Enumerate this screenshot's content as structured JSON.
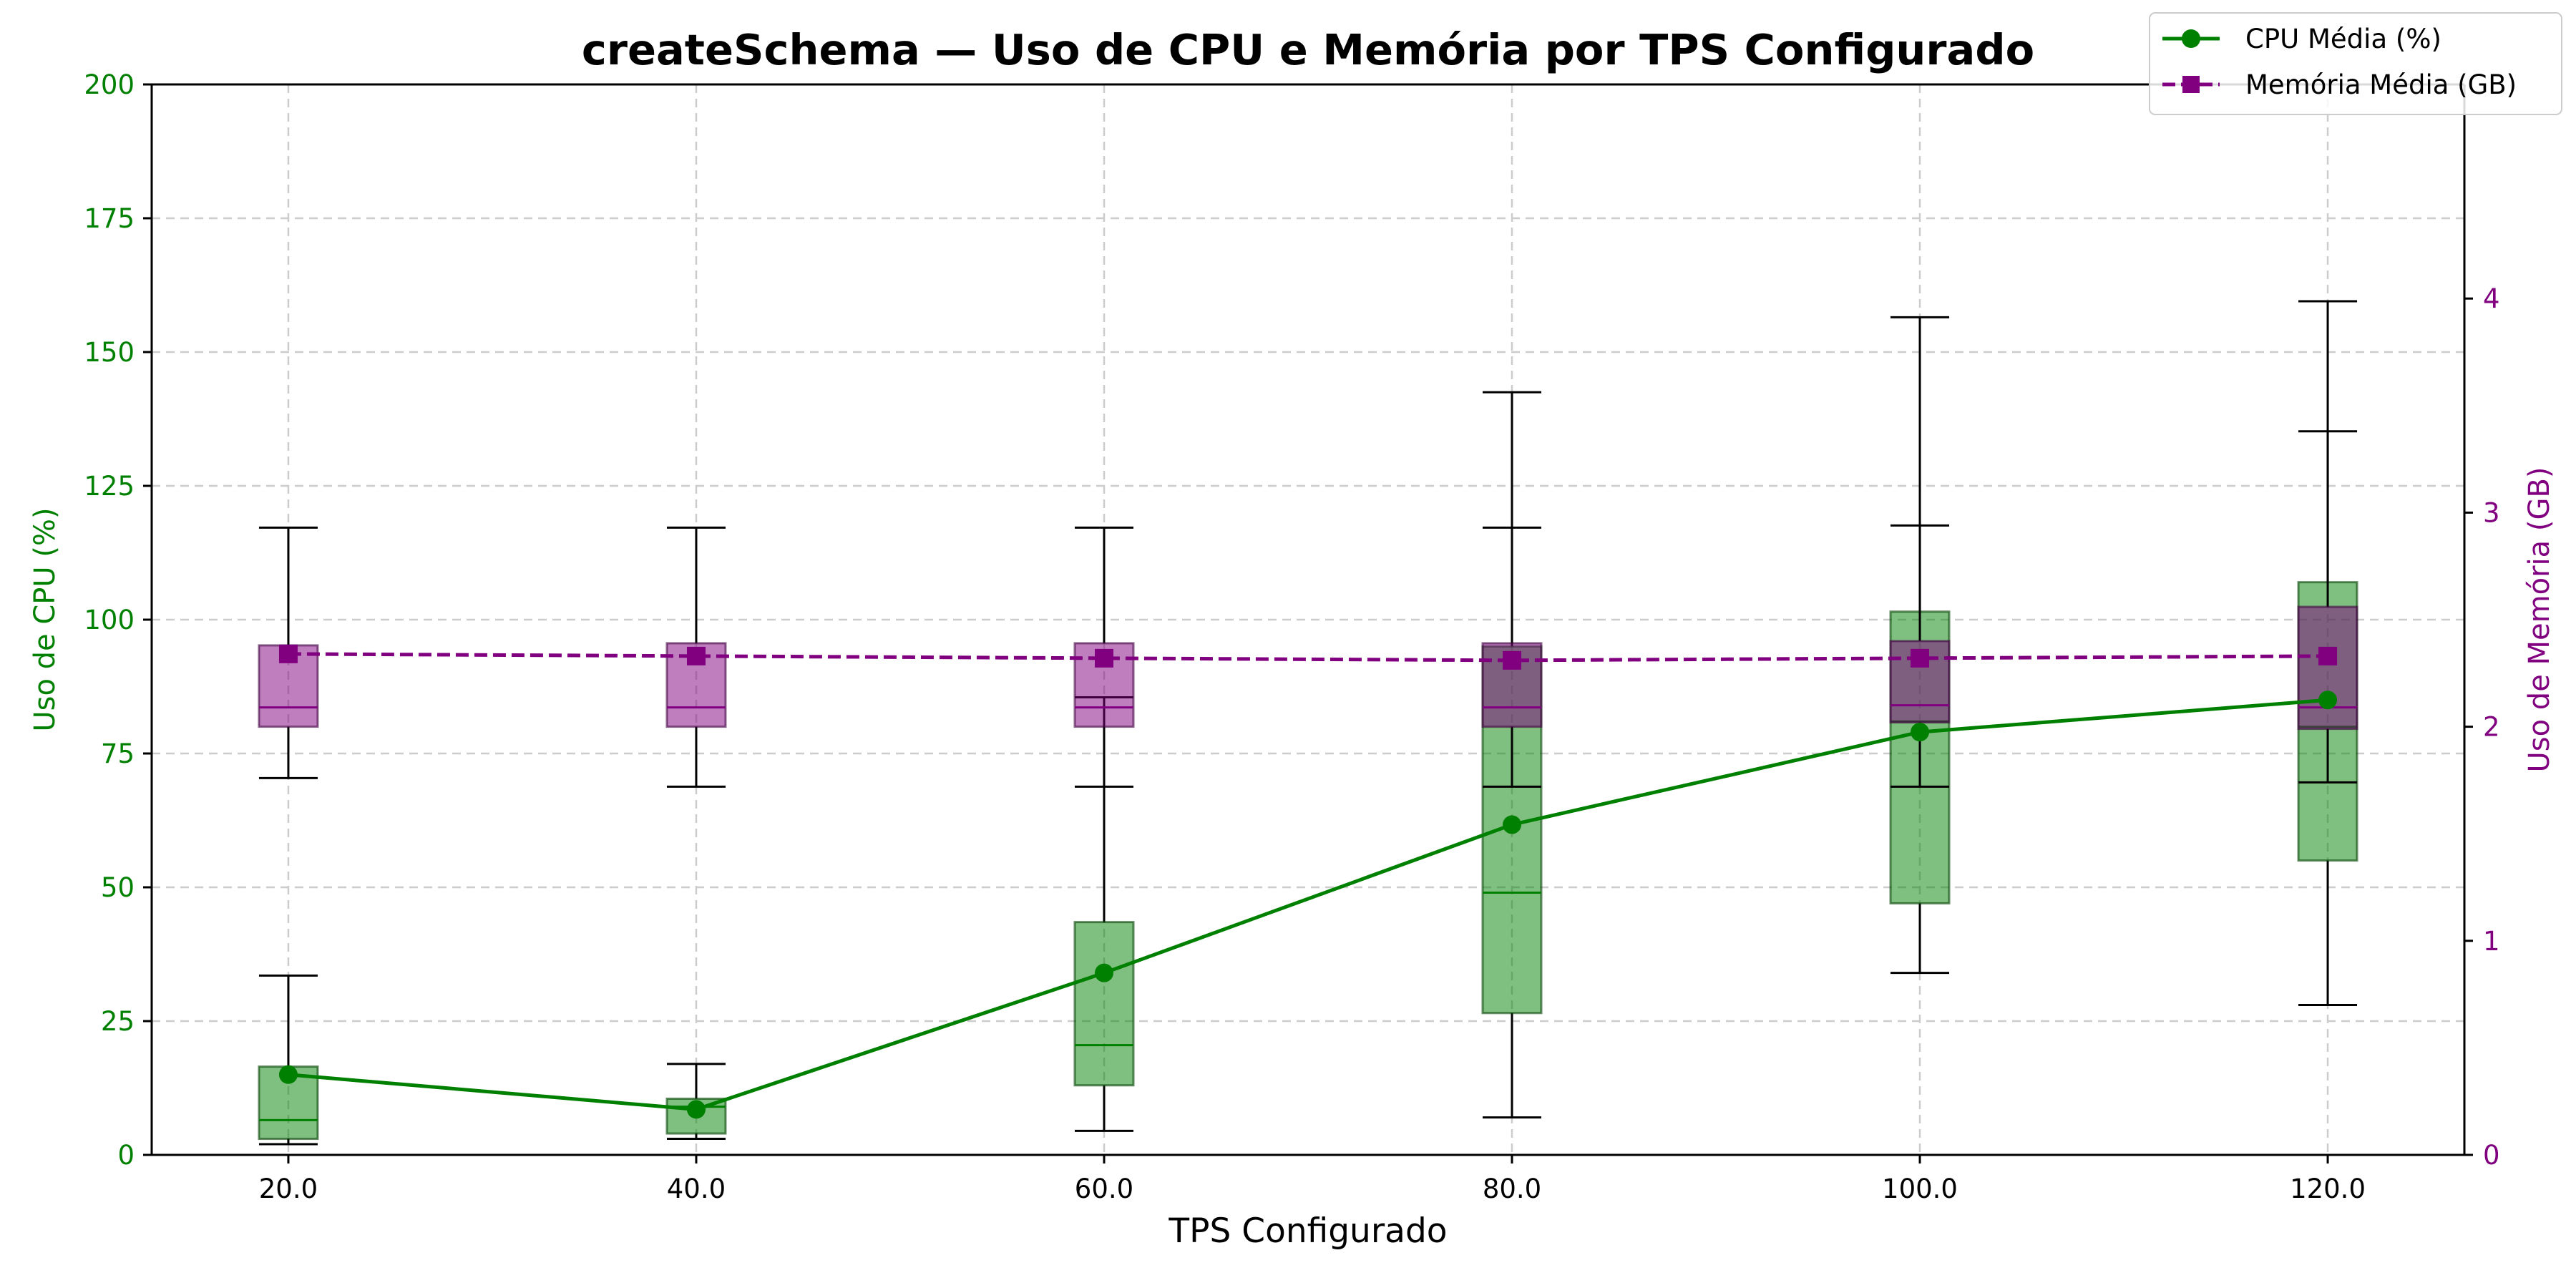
{
  "chart_data": {
    "type": "line",
    "title": "createSchema — Uso de CPU e Memória por TPS Configurado",
    "xlabel": "TPS Configurado",
    "ylabel_left": "Uso de CPU (%)",
    "ylabel_right": "Uso de Memória (GB)",
    "x": [
      20.0,
      40.0,
      60.0,
      80.0,
      100.0,
      120.0
    ],
    "x_tick_labels": [
      "20.0",
      "40.0",
      "60.0",
      "80.0",
      "100.0",
      "120.0"
    ],
    "x_range": [
      13.3,
      126.7
    ],
    "ylim_left": [
      0,
      200
    ],
    "y_ticks_left": [
      "0",
      "25",
      "50",
      "75",
      "100",
      "125",
      "150",
      "175",
      "200"
    ],
    "ylim_right": [
      0,
      5
    ],
    "y_ticks_right": [
      "0",
      "1",
      "2",
      "3",
      "4"
    ],
    "grid": true,
    "legend_position": "top-right",
    "colors": {
      "cpu": "#008000",
      "memory": "#800080",
      "cpu_box": "#7fbf7f",
      "memory_box": "#c990c9"
    },
    "series": [
      {
        "name": "CPU Média (%)",
        "axis": "left",
        "style": "solid",
        "marker": "circle",
        "values": [
          15.0,
          8.5,
          34.0,
          61.7,
          79.0,
          85.0
        ]
      },
      {
        "name": "Memória Média (GB)",
        "axis": "right",
        "style": "dashed",
        "marker": "square",
        "values": [
          2.34,
          2.33,
          2.32,
          2.31,
          2.32,
          2.33
        ]
      }
    ],
    "boxes_cpu": [
      {
        "x": 20.0,
        "whisker_low": 2.0,
        "q1": 3.0,
        "median": 6.5,
        "q3": 16.5,
        "whisker_high": 33.5
      },
      {
        "x": 40.0,
        "whisker_low": 3.0,
        "q1": 4.0,
        "median": 9.0,
        "q3": 10.5,
        "whisker_high": 17.0
      },
      {
        "x": 60.0,
        "whisker_low": 4.5,
        "q1": 13.0,
        "median": 20.5,
        "q3": 43.5,
        "whisker_high": 85.5
      },
      {
        "x": 80.0,
        "whisker_low": 7.0,
        "q1": 26.5,
        "median": 49.0,
        "q3": 95.0,
        "whisker_high": 142.5
      },
      {
        "x": 100.0,
        "whisker_low": 34.0,
        "q1": 47.0,
        "median": 81.0,
        "q3": 101.5,
        "whisker_high": 156.5
      },
      {
        "x": 120.0,
        "whisker_low": 28.0,
        "q1": 55.0,
        "median": 80.0,
        "q3": 107.0,
        "whisker_high": 159.5
      }
    ],
    "boxes_memory": [
      {
        "x": 20.0,
        "whisker_low": 1.76,
        "q1": 2.0,
        "median": 2.09,
        "q3": 2.38,
        "whisker_high": 2.93
      },
      {
        "x": 40.0,
        "whisker_low": 1.72,
        "q1": 2.0,
        "median": 2.09,
        "q3": 2.39,
        "whisker_high": 2.93
      },
      {
        "x": 60.0,
        "whisker_low": 1.72,
        "q1": 2.0,
        "median": 2.09,
        "q3": 2.39,
        "whisker_high": 2.93
      },
      {
        "x": 80.0,
        "whisker_low": 1.72,
        "q1": 2.0,
        "median": 2.09,
        "q3": 2.39,
        "whisker_high": 2.93
      },
      {
        "x": 100.0,
        "whisker_low": 1.72,
        "q1": 2.02,
        "median": 2.1,
        "q3": 2.4,
        "whisker_high": 2.94
      },
      {
        "x": 120.0,
        "whisker_low": 1.74,
        "q1": 1.99,
        "median": 2.09,
        "q3": 2.56,
        "whisker_high": 3.38
      }
    ]
  }
}
